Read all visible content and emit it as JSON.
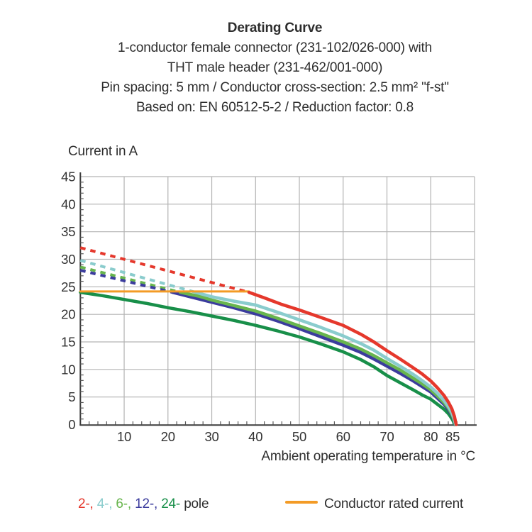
{
  "header": {
    "title": "Derating Curve",
    "lines": [
      "1-conductor female connector (231-102/026-000) with",
      "THT male header (231-462/001-000)",
      "Pin spacing: 5 mm / Conductor cross-section: 2.5 mm² \"f-st\"",
      "Based on: EN 60512-5-2 / Reduction factor: 0.8"
    ]
  },
  "chart_data": {
    "type": "line",
    "title": "Derating Curve",
    "xlabel": "Ambient operating temperature in °C",
    "ylabel": "Current in A",
    "xlim": [
      0,
      90
    ],
    "ylim": [
      0,
      45
    ],
    "x_ticks": [
      10,
      20,
      30,
      40,
      50,
      60,
      70,
      80,
      85
    ],
    "y_ticks": [
      0,
      5,
      10,
      15,
      20,
      25,
      30,
      35,
      40,
      45
    ],
    "grid_x_lines": [
      10,
      20,
      30,
      40,
      50,
      60,
      70,
      80,
      90
    ],
    "grid_y_lines": [
      5,
      10,
      15,
      20,
      25,
      30,
      35,
      40,
      45
    ],
    "minor_tick_step_x": 2,
    "minor_tick_step_y": 1,
    "colors": {
      "grid": "#b3b3b3",
      "axis": "#3c3c3c",
      "rated": "#f39b26"
    },
    "rated_line": {
      "label": "Conductor rated current",
      "value_a": 24.15,
      "x_start": 0,
      "x_end": 38.5,
      "color": "#f39b26"
    },
    "series": [
      {
        "name": "2-pole",
        "color": "#e5382c",
        "dashed": [
          [
            0,
            32.1
          ],
          [
            38.5,
            24
          ]
        ],
        "solid": [
          [
            38.5,
            24
          ],
          [
            42,
            23
          ],
          [
            46,
            21.8
          ],
          [
            50,
            20.8
          ],
          [
            55,
            19.4
          ],
          [
            60,
            18
          ],
          [
            64,
            16.4
          ],
          [
            67,
            15
          ],
          [
            70,
            13.4
          ],
          [
            73,
            11.9
          ],
          [
            76,
            10.3
          ],
          [
            78,
            9.2
          ],
          [
            80,
            7.9
          ],
          [
            81.5,
            6.7
          ],
          [
            83,
            5.3
          ],
          [
            84,
            4.1
          ],
          [
            84.8,
            2.9
          ],
          [
            85.4,
            1.5
          ],
          [
            85.8,
            0
          ]
        ]
      },
      {
        "name": "4-pole",
        "color": "#8acccd",
        "dashed": [
          [
            0,
            29.8
          ],
          [
            26.3,
            24
          ]
        ],
        "solid": [
          [
            26.3,
            24
          ],
          [
            30,
            23.2
          ],
          [
            35,
            22.4
          ],
          [
            40,
            21.7
          ],
          [
            45,
            20.4
          ],
          [
            50,
            19
          ],
          [
            55,
            17.6
          ],
          [
            60,
            16.1
          ],
          [
            64,
            14.7
          ],
          [
            67,
            13.5
          ],
          [
            70,
            12
          ],
          [
            73,
            10.6
          ],
          [
            76,
            9.1
          ],
          [
            78,
            8
          ],
          [
            80,
            6.8
          ],
          [
            81.5,
            5.7
          ],
          [
            83,
            4.4
          ],
          [
            84,
            3.3
          ],
          [
            84.8,
            2.2
          ],
          [
            85.3,
            1.1
          ],
          [
            85.7,
            0
          ]
        ]
      },
      {
        "name": "6-pole",
        "color": "#68b54e",
        "dashed": [
          [
            0,
            28.6
          ],
          [
            22.8,
            24
          ]
        ],
        "solid": [
          [
            22.8,
            24
          ],
          [
            27,
            23.3
          ],
          [
            30,
            22.6
          ],
          [
            35,
            21.6
          ],
          [
            40,
            20.6
          ],
          [
            45,
            19.3
          ],
          [
            50,
            17.9
          ],
          [
            55,
            16.5
          ],
          [
            60,
            15
          ],
          [
            64,
            13.7
          ],
          [
            67,
            12.5
          ],
          [
            70,
            11.2
          ],
          [
            73,
            9.9
          ],
          [
            76,
            8.4
          ],
          [
            78,
            7.4
          ],
          [
            80,
            6.3
          ],
          [
            81.5,
            5.2
          ],
          [
            83,
            4
          ],
          [
            84,
            3
          ],
          [
            84.8,
            1.9
          ],
          [
            85.3,
            0.9
          ],
          [
            85.6,
            0
          ]
        ]
      },
      {
        "name": "12-pole",
        "color": "#3b3c9d",
        "dashed": [
          [
            0,
            28
          ],
          [
            21,
            24
          ]
        ],
        "solid": [
          [
            21,
            24
          ],
          [
            25,
            23.2
          ],
          [
            30,
            22.2
          ],
          [
            35,
            21.2
          ],
          [
            40,
            20.1
          ],
          [
            45,
            18.8
          ],
          [
            50,
            17.4
          ],
          [
            55,
            15.9
          ],
          [
            60,
            14.4
          ],
          [
            64,
            13.1
          ],
          [
            67,
            11.9
          ],
          [
            70,
            10.6
          ],
          [
            73,
            9.3
          ],
          [
            76,
            7.9
          ],
          [
            78,
            6.9
          ],
          [
            80,
            5.9
          ],
          [
            81.5,
            4.8
          ],
          [
            83,
            3.7
          ],
          [
            84,
            2.7
          ],
          [
            84.8,
            1.7
          ],
          [
            85.3,
            0.8
          ],
          [
            85.5,
            0
          ]
        ]
      },
      {
        "name": "24-pole",
        "color": "#188f49",
        "dashed": [],
        "solid": [
          [
            0,
            24
          ],
          [
            5,
            23.4
          ],
          [
            10,
            22.7
          ],
          [
            15,
            22
          ],
          [
            20,
            21.2
          ],
          [
            25,
            20.5
          ],
          [
            30,
            19.7
          ],
          [
            35,
            18.9
          ],
          [
            40,
            18
          ],
          [
            45,
            17
          ],
          [
            50,
            15.9
          ],
          [
            55,
            14.6
          ],
          [
            60,
            13.2
          ],
          [
            64,
            11.8
          ],
          [
            67,
            10.5
          ],
          [
            70,
            8.9
          ],
          [
            73,
            7.6
          ],
          [
            76,
            6.3
          ],
          [
            78,
            5.4
          ],
          [
            80,
            4.6
          ],
          [
            81.5,
            3.7
          ],
          [
            83,
            2.8
          ],
          [
            84,
            2
          ],
          [
            84.8,
            1.1
          ],
          [
            85.2,
            0.5
          ],
          [
            85.4,
            0
          ]
        ]
      }
    ],
    "legend_position": "bottom"
  },
  "legend": {
    "pole_items": [
      {
        "label": "2-,",
        "color": "#e5382c"
      },
      {
        "label": "4-,",
        "color": "#8acccd"
      },
      {
        "label": "6-,",
        "color": "#68b54e"
      },
      {
        "label": "12-,",
        "color": "#3b3c9d"
      },
      {
        "label": "24-",
        "color": "#188f49"
      }
    ],
    "pole_suffix": "pole",
    "rated_label": "Conductor rated current"
  }
}
